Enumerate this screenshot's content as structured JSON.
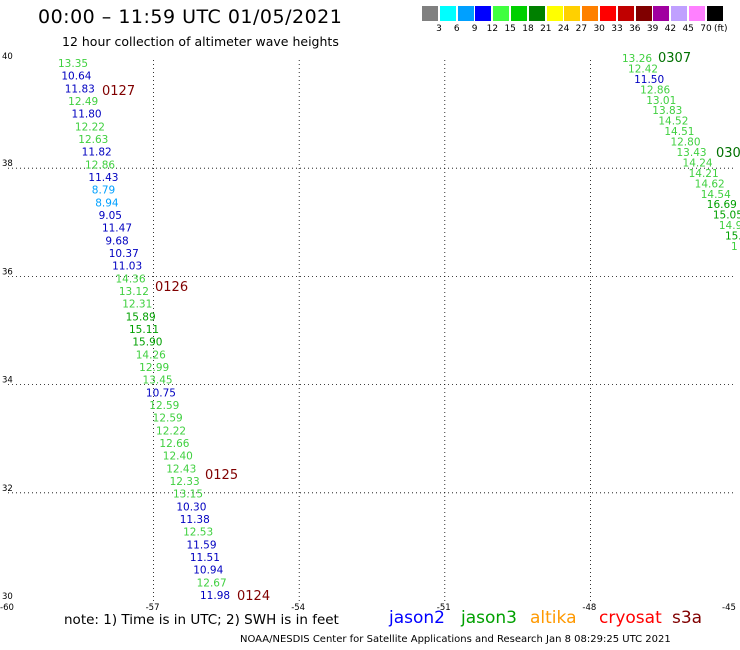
{
  "header": {
    "title": "00:00 – 11:59 UTC 01/05/2021",
    "subtitle": "12 hour collection of altimeter wave heights"
  },
  "legend": {
    "levels": [
      {
        "label": "3",
        "color": "#808080"
      },
      {
        "label": "6",
        "color": "#00ffff"
      },
      {
        "label": "9",
        "color": "#00a0ff"
      },
      {
        "label": "12",
        "color": "#0000ff"
      },
      {
        "label": "15",
        "color": "#40ff40"
      },
      {
        "label": "18",
        "color": "#00d000"
      },
      {
        "label": "21",
        "color": "#008000"
      },
      {
        "label": "24",
        "color": "#ffff00"
      },
      {
        "label": "27",
        "color": "#ffd000"
      },
      {
        "label": "30",
        "color": "#ff8000"
      },
      {
        "label": "33",
        "color": "#ff0000"
      },
      {
        "label": "36",
        "color": "#c00000"
      },
      {
        "label": "39",
        "color": "#800000"
      },
      {
        "label": "42",
        "color": "#a000a0"
      },
      {
        "label": "45",
        "color": "#c0a0ff"
      },
      {
        "label": "70",
        "color": "#ff80ff"
      },
      {
        "label": "",
        "color": "#000000"
      }
    ],
    "unit": "(ft)"
  },
  "map": {
    "lat_ticks": [
      "40",
      "38",
      "36",
      "34",
      "32",
      "30"
    ],
    "lon_ticks": [
      "-60",
      "-57",
      "-54",
      "-51",
      "-48",
      "-45"
    ],
    "lat_range": [
      30,
      40
    ],
    "lon_range": [
      -60,
      -45
    ],
    "gridlines": "dotted"
  },
  "tracks": [
    {
      "values": [
        {
          "v": "13.35",
          "c": "#40d040"
        },
        {
          "v": "10.64",
          "c": "#0000c0"
        },
        {
          "v": "11.83",
          "c": "#0000c0"
        },
        {
          "v": "12.49",
          "c": "#40d040"
        },
        {
          "v": "11.80",
          "c": "#0000c0"
        },
        {
          "v": "12.22",
          "c": "#40d040"
        },
        {
          "v": "12.63",
          "c": "#40d040"
        },
        {
          "v": "11.82",
          "c": "#0000c0"
        },
        {
          "v": "12.86",
          "c": "#40d040"
        },
        {
          "v": "11.43",
          "c": "#0000c0"
        },
        {
          "v": "8.79",
          "c": "#00a0ff"
        },
        {
          "v": "8.94",
          "c": "#00a0ff"
        },
        {
          "v": "9.05",
          "c": "#0000c0"
        },
        {
          "v": "11.47",
          "c": "#0000c0"
        },
        {
          "v": "9.68",
          "c": "#0000c0"
        },
        {
          "v": "10.37",
          "c": "#0000c0"
        },
        {
          "v": "11.03",
          "c": "#0000c0"
        },
        {
          "v": "14.36",
          "c": "#40d040"
        },
        {
          "v": "13.12",
          "c": "#40d040"
        },
        {
          "v": "12.31",
          "c": "#40d040"
        },
        {
          "v": "15.89",
          "c": "#00a000"
        },
        {
          "v": "15.11",
          "c": "#00a000"
        },
        {
          "v": "15.90",
          "c": "#00a000"
        },
        {
          "v": "14.26",
          "c": "#40d040"
        },
        {
          "v": "12.99",
          "c": "#40d040"
        },
        {
          "v": "13.45",
          "c": "#40d040"
        },
        {
          "v": "10.75",
          "c": "#0000c0"
        },
        {
          "v": "12.59",
          "c": "#40d040"
        },
        {
          "v": "12.59",
          "c": "#40d040"
        },
        {
          "v": "12.22",
          "c": "#40d040"
        },
        {
          "v": "12.66",
          "c": "#40d040"
        },
        {
          "v": "12.40",
          "c": "#40d040"
        },
        {
          "v": "12.43",
          "c": "#40d040"
        },
        {
          "v": "12.33",
          "c": "#40d040"
        },
        {
          "v": "13.15",
          "c": "#40d040"
        },
        {
          "v": "10.30",
          "c": "#0000c0"
        },
        {
          "v": "11.38",
          "c": "#0000c0"
        },
        {
          "v": "12.53",
          "c": "#40d040"
        },
        {
          "v": "11.59",
          "c": "#0000c0"
        },
        {
          "v": "11.51",
          "c": "#0000c0"
        },
        {
          "v": "10.94",
          "c": "#0000c0"
        },
        {
          "v": "12.67",
          "c": "#40d040"
        },
        {
          "v": "11.98",
          "c": "#0000c0"
        }
      ],
      "times": [
        "0127",
        "0126",
        "0125",
        "0124"
      ]
    },
    {
      "values": [
        {
          "v": "13.26",
          "c": "#40d040"
        },
        {
          "v": "12.42",
          "c": "#40d040"
        },
        {
          "v": "11.50",
          "c": "#0000c0"
        },
        {
          "v": "12.86",
          "c": "#40d040"
        },
        {
          "v": "13.01",
          "c": "#40d040"
        },
        {
          "v": "13.83",
          "c": "#40d040"
        },
        {
          "v": "14.52",
          "c": "#40d040"
        },
        {
          "v": "14.51",
          "c": "#40d040"
        },
        {
          "v": "12.80",
          "c": "#40d040"
        },
        {
          "v": "13.43",
          "c": "#40d040"
        },
        {
          "v": "14.24",
          "c": "#40d040"
        },
        {
          "v": "14.21",
          "c": "#40d040"
        },
        {
          "v": "14.62",
          "c": "#40d040"
        },
        {
          "v": "14.54",
          "c": "#40d040"
        },
        {
          "v": "16.69",
          "c": "#00a000"
        },
        {
          "v": "15.05",
          "c": "#00a000"
        },
        {
          "v": "14.9",
          "c": "#40d040"
        },
        {
          "v": "15.",
          "c": "#00a000"
        },
        {
          "v": "1",
          "c": "#40d040"
        }
      ],
      "times": [
        "0307",
        "030"
      ]
    }
  ],
  "footer": {
    "note": "note:  1) Time is in UTC;  2) SWH is in feet",
    "satellites": [
      {
        "name": "jason2",
        "color": "#0000ff"
      },
      {
        "name": "jason3",
        "color": "#00a000"
      },
      {
        "name": "altika",
        "color": "#ff9900"
      },
      {
        "name": "cryosat",
        "color": "#ff0000"
      },
      {
        "name": "s3a",
        "color": "#800000"
      }
    ],
    "credit": "NOAA/NESDIS Center for Satellite Applications and Research    Jan  8 08:29:25 UTC 2021"
  }
}
